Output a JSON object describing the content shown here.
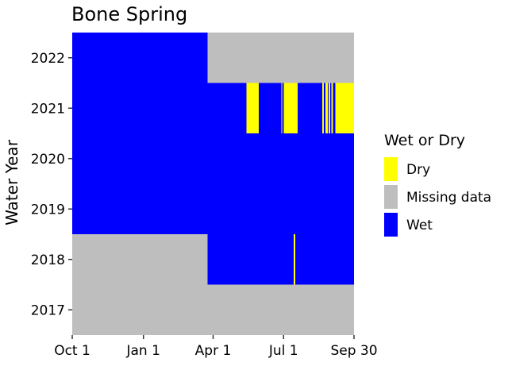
{
  "chart_data": {
    "type": "heatmap",
    "title": "Bone Spring",
    "xlabel": "",
    "ylabel": "Water Year",
    "x_domain_days": [
      0,
      364
    ],
    "x_ticks": [
      {
        "label": "Oct 1",
        "day": 0
      },
      {
        "label": "Jan 1",
        "day": 92
      },
      {
        "label": "Apr 1",
        "day": 182
      },
      {
        "label": "Jul 1",
        "day": 273
      },
      {
        "label": "Sep 30",
        "day": 364
      }
    ],
    "years": [
      "2017",
      "2018",
      "2019",
      "2020",
      "2021",
      "2022"
    ],
    "legend": {
      "title": "Wet or Dry",
      "position": "right",
      "items": [
        {
          "key": "Dry",
          "label": "Dry",
          "color": "#ffff00"
        },
        {
          "key": "Missing",
          "label": "Missing data",
          "color": "#bebebe"
        },
        {
          "key": "Wet",
          "label": "Wet",
          "color": "#0000ff"
        }
      ]
    },
    "segments": [
      {
        "year": "2017",
        "start": 0,
        "end": 365,
        "status": "Missing"
      },
      {
        "year": "2018",
        "start": 0,
        "end": 175,
        "status": "Missing"
      },
      {
        "year": "2018",
        "start": 175,
        "end": 286,
        "status": "Wet"
      },
      {
        "year": "2018",
        "start": 286,
        "end": 288,
        "status": "Dry"
      },
      {
        "year": "2018",
        "start": 288,
        "end": 365,
        "status": "Wet"
      },
      {
        "year": "2019",
        "start": 0,
        "end": 365,
        "status": "Wet"
      },
      {
        "year": "2020",
        "start": 0,
        "end": 365,
        "status": "Wet"
      },
      {
        "year": "2021",
        "start": 0,
        "end": 225,
        "status": "Wet"
      },
      {
        "year": "2021",
        "start": 225,
        "end": 241,
        "status": "Dry"
      },
      {
        "year": "2021",
        "start": 241,
        "end": 270,
        "status": "Wet"
      },
      {
        "year": "2021",
        "start": 270,
        "end": 271,
        "status": "Dry"
      },
      {
        "year": "2021",
        "start": 271,
        "end": 273,
        "status": "Wet"
      },
      {
        "year": "2021",
        "start": 273,
        "end": 291,
        "status": "Dry"
      },
      {
        "year": "2021",
        "start": 291,
        "end": 323,
        "status": "Wet"
      },
      {
        "year": "2021",
        "start": 323,
        "end": 325,
        "status": "Dry"
      },
      {
        "year": "2021",
        "start": 325,
        "end": 327,
        "status": "Wet"
      },
      {
        "year": "2021",
        "start": 327,
        "end": 330,
        "status": "Dry"
      },
      {
        "year": "2021",
        "start": 330,
        "end": 331,
        "status": "Wet"
      },
      {
        "year": "2021",
        "start": 331,
        "end": 333,
        "status": "Dry"
      },
      {
        "year": "2021",
        "start": 333,
        "end": 335,
        "status": "Wet"
      },
      {
        "year": "2021",
        "start": 335,
        "end": 337,
        "status": "Dry"
      },
      {
        "year": "2021",
        "start": 337,
        "end": 340,
        "status": "Wet"
      },
      {
        "year": "2021",
        "start": 340,
        "end": 365,
        "status": "Dry"
      },
      {
        "year": "2022",
        "start": 0,
        "end": 175,
        "status": "Wet"
      },
      {
        "year": "2022",
        "start": 175,
        "end": 365,
        "status": "Missing"
      }
    ]
  }
}
